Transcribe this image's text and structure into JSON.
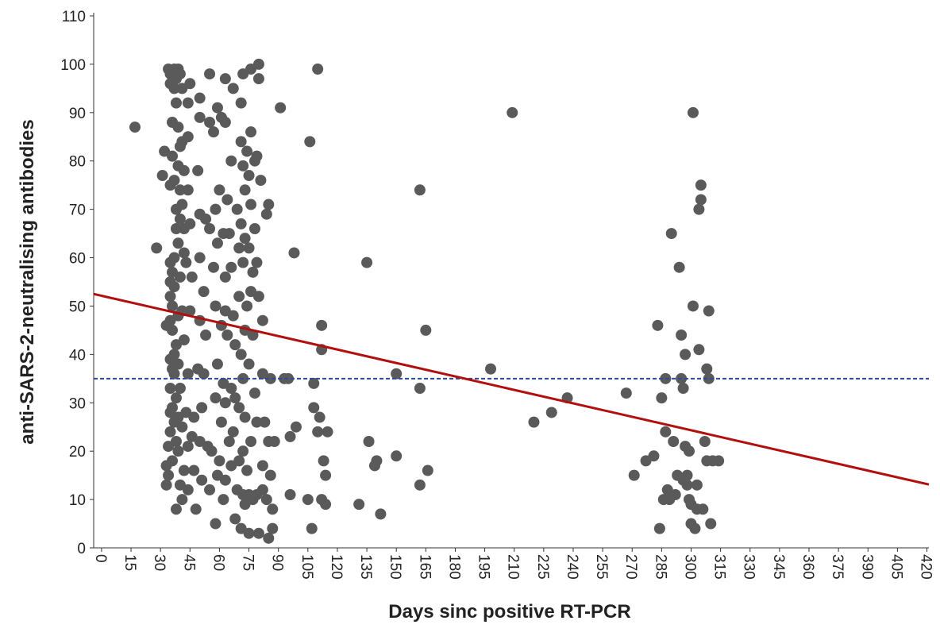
{
  "chart_data": {
    "type": "scatter",
    "x_label": "Days sinc positive RT-PCR",
    "y_label": "anti-SARS-2-neutralising antibodies",
    "color": "#5a5a5a",
    "xlim": [
      -4,
      421
    ],
    "ylim": [
      0,
      110
    ],
    "xticks": [
      0,
      15,
      30,
      45,
      60,
      75,
      90,
      105,
      120,
      135,
      150,
      165,
      180,
      195,
      210,
      225,
      240,
      255,
      270,
      285,
      300,
      315,
      330,
      345,
      360,
      375,
      390,
      405,
      420
    ],
    "yticks": [
      0,
      10,
      20,
      30,
      40,
      50,
      60,
      70,
      80,
      90,
      100,
      110
    ],
    "grid": false,
    "x": [
      17,
      28,
      31,
      32,
      33,
      33,
      33,
      34,
      34,
      34,
      35,
      35,
      35,
      35,
      35,
      35,
      35,
      35,
      35,
      35,
      35,
      36,
      36,
      36,
      36,
      36,
      36,
      36,
      36,
      37,
      37,
      37,
      37,
      37,
      37,
      37,
      37,
      38,
      38,
      38,
      38,
      38,
      38,
      38,
      38,
      39,
      39,
      39,
      39,
      39,
      39,
      39,
      39,
      40,
      40,
      40,
      40,
      40,
      40,
      40,
      41,
      41,
      41,
      41,
      41,
      41,
      42,
      42,
      42,
      42,
      42,
      43,
      43,
      44,
      44,
      44,
      44,
      44,
      44,
      45,
      45,
      45,
      46,
      46,
      47,
      47,
      48,
      49,
      49,
      50,
      50,
      50,
      50,
      50,
      50,
      51,
      51,
      52,
      52,
      53,
      53,
      54,
      55,
      55,
      55,
      55,
      56,
      57,
      57,
      58,
      58,
      58,
      58,
      59,
      59,
      59,
      59,
      60,
      60,
      61,
      61,
      61,
      62,
      62,
      62,
      63,
      63,
      63,
      63,
      63,
      63,
      64,
      64,
      65,
      65,
      66,
      66,
      66,
      66,
      67,
      67,
      67,
      68,
      68,
      68,
      69,
      69,
      70,
      70,
      70,
      70,
      71,
      71,
      71,
      71,
      71,
      72,
      72,
      72,
      72,
      72,
      72,
      73,
      73,
      73,
      73,
      73,
      74,
      74,
      74,
      75,
      75,
      75,
      75,
      75,
      76,
      76,
      76,
      76,
      76,
      77,
      77,
      77,
      78,
      78,
      78,
      79,
      79,
      79,
      79,
      80,
      80,
      80,
      80,
      81,
      82,
      82,
      82,
      82,
      83,
      84,
      84,
      85,
      85,
      85,
      86,
      86,
      87,
      87,
      88,
      91,
      93,
      95,
      96,
      96,
      98,
      99,
      105,
      106,
      107,
      108,
      108,
      110,
      110,
      111,
      112,
      112,
      112,
      113,
      114,
      114,
      115,
      131,
      135,
      136,
      139,
      140,
      142,
      150,
      150,
      162,
      162,
      162,
      165,
      166,
      198,
      209,
      220,
      229,
      237,
      267,
      271,
      277,
      281,
      283,
      284,
      285,
      286,
      287,
      287,
      288,
      289,
      290,
      291,
      292,
      293,
      294,
      295,
      295,
      296,
      296,
      297,
      297,
      298,
      298,
      299,
      299,
      300,
      300,
      301,
      301,
      302,
      303,
      303,
      304,
      304,
      305,
      305,
      306,
      307,
      308,
      308,
      309,
      309,
      310,
      311,
      314
    ],
    "values": [
      87,
      62,
      77,
      82,
      46,
      17,
      13,
      15,
      21,
      99,
      98,
      96,
      75,
      59,
      55,
      52,
      47,
      39,
      33,
      28,
      24,
      88,
      81,
      57,
      50,
      45,
      37,
      29,
      18,
      99,
      95,
      76,
      60,
      54,
      40,
      36,
      26,
      97,
      92,
      70,
      66,
      42,
      31,
      22,
      8,
      99,
      87,
      79,
      63,
      48,
      38,
      27,
      20,
      98,
      83,
      74,
      68,
      56,
      33,
      13,
      95,
      84,
      71,
      49,
      25,
      10,
      78,
      66,
      61,
      43,
      16,
      59,
      28,
      92,
      85,
      74,
      36,
      21,
      12,
      96,
      67,
      49,
      56,
      23,
      27,
      16,
      8,
      78,
      37,
      93,
      89,
      69,
      60,
      47,
      22,
      29,
      14,
      36,
      53,
      68,
      44,
      21,
      98,
      88,
      66,
      12,
      20,
      86,
      58,
      70,
      50,
      31,
      5,
      91,
      63,
      38,
      15,
      74,
      18,
      89,
      46,
      26,
      65,
      34,
      10,
      97,
      88,
      56,
      49,
      30,
      14,
      72,
      44,
      65,
      22,
      80,
      58,
      33,
      17,
      95,
      48,
      24,
      42,
      31,
      6,
      70,
      12,
      62,
      52,
      29,
      18,
      92,
      84,
      67,
      40,
      4,
      98,
      79,
      59,
      35,
      20,
      11,
      74,
      64,
      45,
      27,
      9,
      82,
      50,
      16,
      77,
      62,
      38,
      11,
      3,
      99,
      86,
      71,
      53,
      22,
      57,
      44,
      10,
      80,
      66,
      32,
      81,
      59,
      26,
      11,
      100,
      97,
      52,
      3,
      76,
      47,
      36,
      17,
      12,
      26,
      69,
      10,
      71,
      22,
      2,
      35,
      15,
      8,
      4,
      22,
      91,
      35,
      35,
      11,
      23,
      61,
      25,
      10,
      84,
      4,
      29,
      34,
      99,
      24,
      27,
      46,
      41,
      10,
      18,
      15,
      9,
      24,
      9,
      59,
      22,
      17,
      18,
      7,
      36,
      19,
      74,
      33,
      13,
      45,
      16,
      37,
      90,
      26,
      28,
      31,
      32,
      15,
      18,
      19,
      46,
      4,
      31,
      10,
      35,
      24,
      12,
      10,
      65,
      22,
      11,
      15,
      58,
      44,
      35,
      14,
      33,
      40,
      21,
      15,
      13,
      20,
      10,
      5,
      9,
      50,
      90,
      4,
      13,
      8,
      41,
      70,
      75,
      72,
      8,
      22,
      37,
      18,
      35,
      49,
      5,
      18,
      18
    ],
    "trend_line": {
      "x": [
        -4,
        421
      ],
      "values": [
        52.5,
        13.1
      ],
      "color": "#b20f0f"
    },
    "reference_line": {
      "value": 35,
      "color": "#2a4aa0"
    }
  }
}
